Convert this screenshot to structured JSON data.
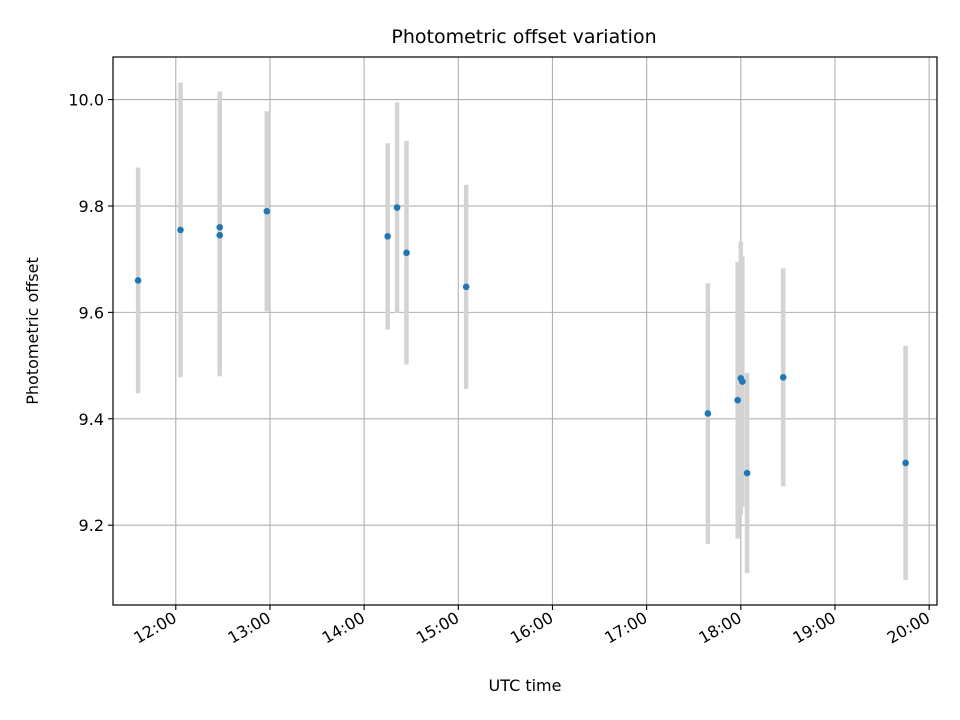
{
  "chart_data": {
    "type": "scatter",
    "title": "Photometric offset variation",
    "xlabel": "UTC time",
    "ylabel": "Photometric offset",
    "grid": true,
    "xlim": [
      "11:20",
      "20:05"
    ],
    "ylim": [
      9.05,
      10.08
    ],
    "xticks": [
      "12:00",
      "13:00",
      "14:00",
      "15:00",
      "16:00",
      "17:00",
      "18:00",
      "19:00",
      "20:00"
    ],
    "yticks": [
      "9.2",
      "9.4",
      "9.6",
      "9.8",
      "10.0"
    ],
    "colors": {
      "marker": "#1f77b4",
      "errorbar": "#d3d3d3",
      "grid": "#b0b0b0"
    },
    "points": [
      {
        "x": "11:36",
        "y": 9.66,
        "err": 0.212
      },
      {
        "x": "12:03",
        "y": 9.755,
        "err": 0.277
      },
      {
        "x": "12:28",
        "y": 9.76,
        "err": 0.255
      },
      {
        "x": "12:28",
        "y": 9.745,
        "err": 0.265
      },
      {
        "x": "12:58",
        "y": 9.79,
        "err": 0.188
      },
      {
        "x": "14:15",
        "y": 9.743,
        "err": 0.175
      },
      {
        "x": "14:21",
        "y": 9.797,
        "err": 0.198
      },
      {
        "x": "14:27",
        "y": 9.712,
        "err": 0.21
      },
      {
        "x": "15:05",
        "y": 9.648,
        "err": 0.192
      },
      {
        "x": "17:39",
        "y": 9.41,
        "err": 0.245
      },
      {
        "x": "17:58",
        "y": 9.435,
        "err": 0.26
      },
      {
        "x": "18:00",
        "y": 9.476,
        "err": 0.257
      },
      {
        "x": "18:01",
        "y": 9.47,
        "err": 0.235
      },
      {
        "x": "18:04",
        "y": 9.298,
        "err": 0.188
      },
      {
        "x": "18:27",
        "y": 9.478,
        "err": 0.205
      },
      {
        "x": "19:45",
        "y": 9.317,
        "err": 0.22
      }
    ]
  }
}
